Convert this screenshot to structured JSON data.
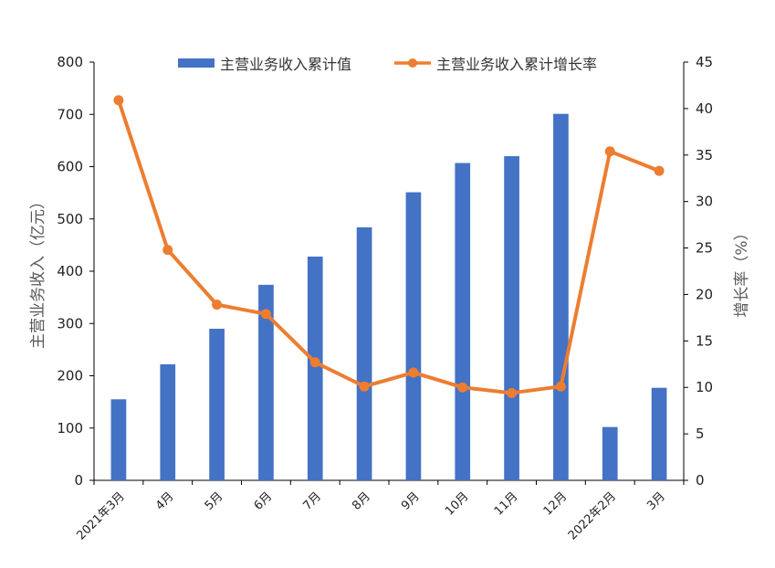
{
  "chart_data": {
    "type": "bar+line",
    "categories": [
      "2021年3月",
      "4月",
      "5月",
      "6月",
      "7月",
      "8月",
      "9月",
      "10月",
      "11月",
      "12月",
      "2022年2月",
      "3月"
    ],
    "series": [
      {
        "name": "主营业务收入累计值",
        "type": "bar",
        "axis": "left",
        "color": "#4472C4",
        "values": [
          155,
          222,
          290,
          374,
          428,
          484,
          551,
          607,
          620,
          701,
          102,
          177
        ]
      },
      {
        "name": "主营业务收入累计增长率",
        "type": "line",
        "axis": "right",
        "color": "#ED7D31",
        "values": [
          40.9,
          24.8,
          18.9,
          17.9,
          12.7,
          10.1,
          11.6,
          10.0,
          9.4,
          10.1,
          35.4,
          33.3
        ]
      }
    ],
    "y_left": {
      "label": "主营业务收入（亿元）",
      "lim": [
        0,
        800
      ],
      "ticks": [
        "0",
        "100",
        "200",
        "300",
        "400",
        "500",
        "600",
        "700",
        "800"
      ]
    },
    "y_right": {
      "label": "增长率（%）",
      "lim": [
        0,
        45
      ],
      "ticks": [
        "0",
        "5",
        "10",
        "15",
        "20",
        "25",
        "30",
        "35",
        "40",
        "45"
      ]
    },
    "grid": false,
    "legend_position": "top"
  }
}
